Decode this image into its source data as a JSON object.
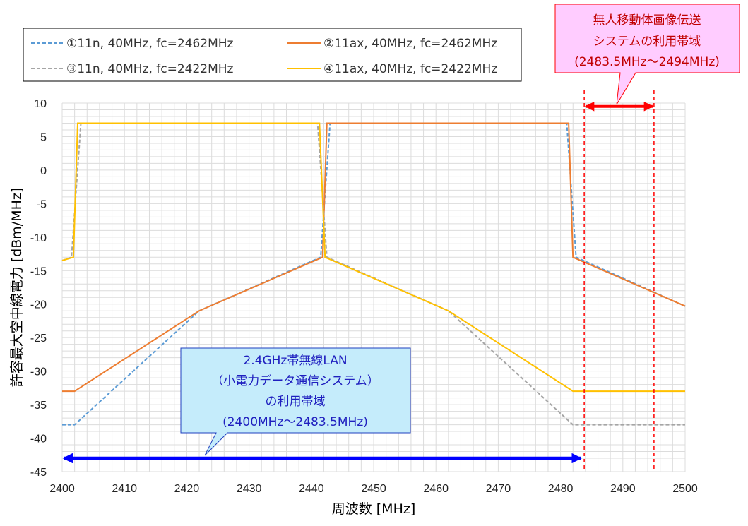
{
  "chart_data": {
    "type": "line",
    "xlabel": "周波数 [MHz]",
    "ylabel": "許容最大空中線電力 [dBm/MHz]",
    "xlim": [
      2400,
      2500
    ],
    "ylim": [
      -45,
      10
    ],
    "xticks": [
      2400,
      2410,
      2420,
      2430,
      2440,
      2450,
      2460,
      2470,
      2480,
      2490,
      2500
    ],
    "yticks": [
      10,
      5,
      0,
      -5,
      -10,
      -15,
      -20,
      -25,
      -30,
      -35,
      -40,
      -45
    ],
    "grid": true,
    "legend_position": "top-left",
    "series": [
      {
        "name": "①11n, 40MHz, fc=2462MHz",
        "color": "#5b9bd5",
        "dash": "dashed",
        "points": [
          [
            2400,
            -38
          ],
          [
            2402,
            -38
          ],
          [
            2422,
            -21
          ],
          [
            2441.5,
            -13
          ],
          [
            2443,
            7
          ],
          [
            2481,
            7
          ],
          [
            2482.5,
            -13
          ],
          [
            2500,
            -20.3
          ]
        ]
      },
      {
        "name": "②11ax, 40MHz, fc=2462MHz",
        "color": "#ed7d31",
        "dash": "solid",
        "points": [
          [
            2400,
            -33
          ],
          [
            2402,
            -33
          ],
          [
            2422,
            -21
          ],
          [
            2441.8,
            -13
          ],
          [
            2442.5,
            7
          ],
          [
            2481.3,
            7
          ],
          [
            2482,
            -13
          ],
          [
            2500,
            -20.3
          ]
        ]
      },
      {
        "name": "③11n, 40MHz, fc=2422MHz",
        "color": "#a5a5a5",
        "dash": "dashed",
        "points": [
          [
            2400,
            -13.5
          ],
          [
            2401.5,
            -13
          ],
          [
            2403,
            7
          ],
          [
            2441,
            7
          ],
          [
            2442.5,
            -13
          ],
          [
            2462,
            -21
          ],
          [
            2482,
            -38
          ],
          [
            2500,
            -38
          ]
        ]
      },
      {
        "name": "④11ax, 40MHz, fc=2422MHz",
        "color": "#ffc000",
        "dash": "solid",
        "points": [
          [
            2400,
            -13.5
          ],
          [
            2401.8,
            -13
          ],
          [
            2402.5,
            7
          ],
          [
            2441.3,
            7
          ],
          [
            2442.2,
            -13
          ],
          [
            2462,
            -21
          ],
          [
            2482,
            -33
          ],
          [
            2500,
            -33
          ]
        ]
      }
    ],
    "annotations": {
      "wlan_band": {
        "lines": [
          "2.4GHz帯無線LAN",
          "（小電力データ通信システム）",
          "の利用帯域",
          "(2400MHz～2483.5MHz)"
        ],
        "range": [
          2400,
          2483.5
        ],
        "y": -43,
        "arrow_color": "#0000ff",
        "fill": "#c5ecfb",
        "text_color": "#1f1fbf"
      },
      "drone_band": {
        "lines": [
          "無人移動体画像伝送",
          "システムの利用帯域",
          "(2483.5MHz～2494MHz)"
        ],
        "range": [
          2483.5,
          2494
        ],
        "y": 9.5,
        "arrow_color": "#ff0000",
        "fill": "#ffccff",
        "text_color": "#c00000",
        "boundary_lines": [
          2483.8,
          2495
        ]
      }
    }
  }
}
